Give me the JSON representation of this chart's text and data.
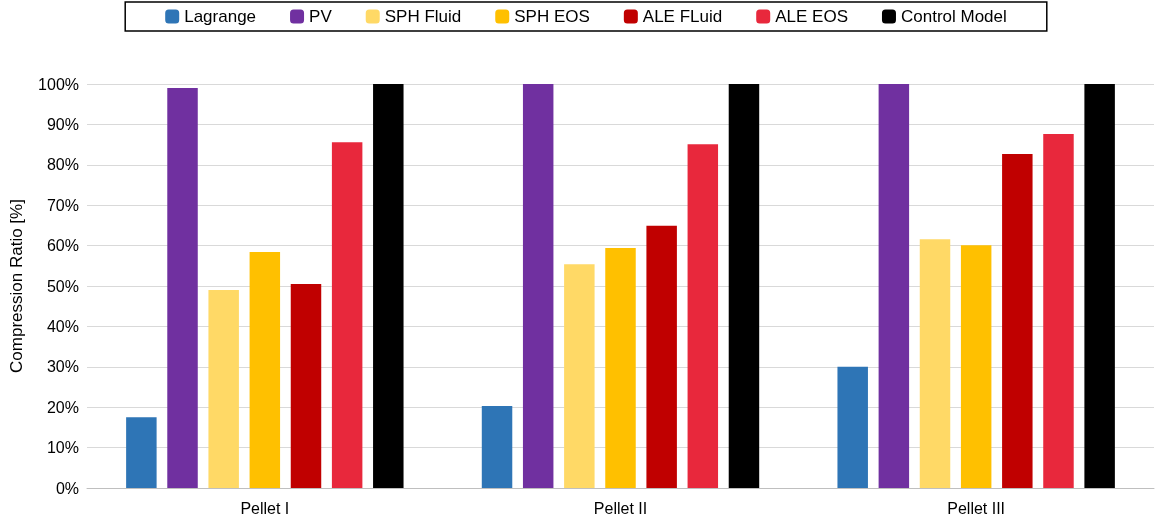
{
  "chart_data": {
    "type": "bar",
    "ylabel": "Compression Ratio [%]",
    "categories": [
      "Pellet I",
      "Pellet II",
      "Pellet III"
    ],
    "series": [
      {
        "name": "Lagrange",
        "color": "#2e75b6",
        "values": [
          17.5,
          20.3,
          30
        ]
      },
      {
        "name": "PV",
        "color": "#7030a0",
        "values": [
          99,
          100,
          100
        ]
      },
      {
        "name": "SPH Fluid",
        "color": "#ffd966",
        "values": [
          49,
          55.4,
          61.6
        ]
      },
      {
        "name": "SPH EOS",
        "color": "#ffc000",
        "values": [
          58.4,
          59.4,
          60.1
        ]
      },
      {
        "name": "ALE FLuid",
        "color": "#c00000",
        "values": [
          50.5,
          64.9,
          82.7
        ]
      },
      {
        "name": "ALE EOS",
        "color": "#e8283c",
        "values": [
          85.6,
          85.1,
          87.6
        ]
      },
      {
        "name": "Control Model",
        "color": "#000000",
        "values": [
          100,
          100,
          100
        ]
      }
    ],
    "ylim": [
      0,
      100
    ],
    "yticks": [
      {
        "value": 0,
        "label": "0%"
      },
      {
        "value": 10,
        "label": "10%"
      },
      {
        "value": 20,
        "label": "20%"
      },
      {
        "value": 30,
        "label": "30%"
      },
      {
        "value": 40,
        "label": "40%"
      },
      {
        "value": 50,
        "label": "50%"
      },
      {
        "value": 60,
        "label": "60%"
      },
      {
        "value": 70,
        "label": "70%"
      },
      {
        "value": 80,
        "label": "80%"
      },
      {
        "value": 90,
        "label": "90%"
      },
      {
        "value": 100,
        "label": "100%"
      }
    ],
    "grid": "y",
    "legend": "top"
  }
}
